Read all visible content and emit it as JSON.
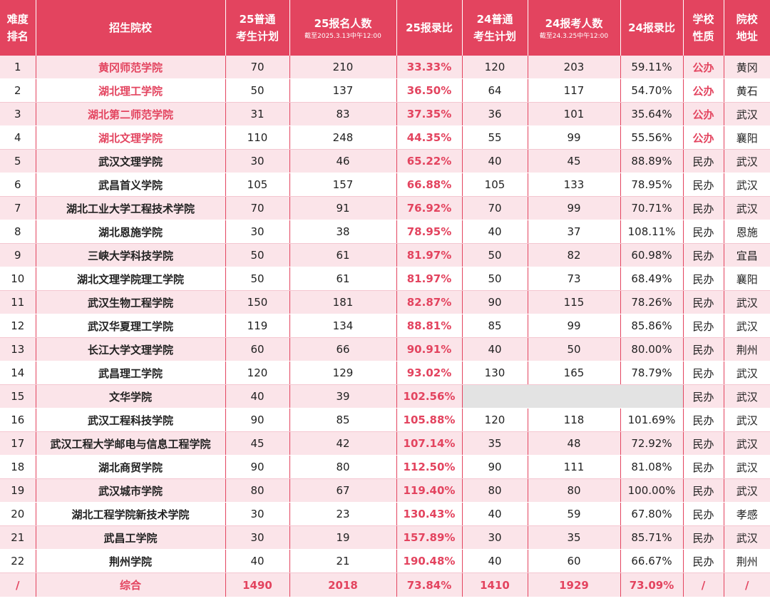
{
  "headers": {
    "rank": [
      "难度",
      "排名"
    ],
    "school": "招生院校",
    "plan25": [
      "25普通",
      "考生计划"
    ],
    "apply25": "25报名人数",
    "apply25_note": "截至2025.3.13中午12:00",
    "ratio25": "25报录比",
    "plan24": [
      "24普通",
      "考生计划"
    ],
    "apply24": "24报考人数",
    "apply24_note": "截至24.3.25中午12:00",
    "ratio24": "24报录比",
    "nature": [
      "学校",
      "性质"
    ],
    "location": [
      "院校",
      "地址"
    ]
  },
  "rows": [
    {
      "rank": "1",
      "school": "黄冈师范学院",
      "plan25": "70",
      "apply25": "210",
      "ratio25": "33.33%",
      "plan24": "120",
      "apply24": "203",
      "ratio24": "59.11%",
      "nature": "公办",
      "location": "黄冈",
      "public": true
    },
    {
      "rank": "2",
      "school": "湖北理工学院",
      "plan25": "50",
      "apply25": "137",
      "ratio25": "36.50%",
      "plan24": "64",
      "apply24": "117",
      "ratio24": "54.70%",
      "nature": "公办",
      "location": "黄石",
      "public": true
    },
    {
      "rank": "3",
      "school": "湖北第二师范学院",
      "plan25": "31",
      "apply25": "83",
      "ratio25": "37.35%",
      "plan24": "36",
      "apply24": "101",
      "ratio24": "35.64%",
      "nature": "公办",
      "location": "武汉",
      "public": true
    },
    {
      "rank": "4",
      "school": "湖北文理学院",
      "plan25": "110",
      "apply25": "248",
      "ratio25": "44.35%",
      "plan24": "55",
      "apply24": "99",
      "ratio24": "55.56%",
      "nature": "公办",
      "location": "襄阳",
      "public": true
    },
    {
      "rank": "5",
      "school": "武汉文理学院",
      "plan25": "30",
      "apply25": "46",
      "ratio25": "65.22%",
      "plan24": "40",
      "apply24": "45",
      "ratio24": "88.89%",
      "nature": "民办",
      "location": "武汉",
      "public": false
    },
    {
      "rank": "6",
      "school": "武昌首义学院",
      "plan25": "105",
      "apply25": "157",
      "ratio25": "66.88%",
      "plan24": "105",
      "apply24": "133",
      "ratio24": "78.95%",
      "nature": "民办",
      "location": "武汉",
      "public": false
    },
    {
      "rank": "7",
      "school": "湖北工业大学工程技术学院",
      "plan25": "70",
      "apply25": "91",
      "ratio25": "76.92%",
      "plan24": "70",
      "apply24": "99",
      "ratio24": "70.71%",
      "nature": "民办",
      "location": "武汉",
      "public": false
    },
    {
      "rank": "8",
      "school": "湖北恩施学院",
      "plan25": "30",
      "apply25": "38",
      "ratio25": "78.95%",
      "plan24": "40",
      "apply24": "37",
      "ratio24": "108.11%",
      "nature": "民办",
      "location": "恩施",
      "public": false
    },
    {
      "rank": "9",
      "school": "三峡大学科技学院",
      "plan25": "50",
      "apply25": "61",
      "ratio25": "81.97%",
      "plan24": "50",
      "apply24": "82",
      "ratio24": "60.98%",
      "nature": "民办",
      "location": "宜昌",
      "public": false
    },
    {
      "rank": "10",
      "school": "湖北文理学院理工学院",
      "plan25": "50",
      "apply25": "61",
      "ratio25": "81.97%",
      "plan24": "50",
      "apply24": "73",
      "ratio24": "68.49%",
      "nature": "民办",
      "location": "襄阳",
      "public": false
    },
    {
      "rank": "11",
      "school": "武汉生物工程学院",
      "plan25": "150",
      "apply25": "181",
      "ratio25": "82.87%",
      "plan24": "90",
      "apply24": "115",
      "ratio24": "78.26%",
      "nature": "民办",
      "location": "武汉",
      "public": false
    },
    {
      "rank": "12",
      "school": "武汉华夏理工学院",
      "plan25": "119",
      "apply25": "134",
      "ratio25": "88.81%",
      "plan24": "85",
      "apply24": "99",
      "ratio24": "85.86%",
      "nature": "民办",
      "location": "武汉",
      "public": false
    },
    {
      "rank": "13",
      "school": "长江大学文理学院",
      "plan25": "60",
      "apply25": "66",
      "ratio25": "90.91%",
      "plan24": "40",
      "apply24": "50",
      "ratio24": "80.00%",
      "nature": "民办",
      "location": "荆州",
      "public": false
    },
    {
      "rank": "14",
      "school": "武昌理工学院",
      "plan25": "120",
      "apply25": "129",
      "ratio25": "93.02%",
      "plan24": "130",
      "apply24": "165",
      "ratio24": "78.79%",
      "nature": "民办",
      "location": "武汉",
      "public": false
    },
    {
      "rank": "15",
      "school": "文华学院",
      "plan25": "40",
      "apply25": "39",
      "ratio25": "102.56%",
      "plan24": null,
      "apply24": null,
      "ratio24": null,
      "nature": "民办",
      "location": "武汉",
      "public": false
    },
    {
      "rank": "16",
      "school": "武汉工程科技学院",
      "plan25": "90",
      "apply25": "85",
      "ratio25": "105.88%",
      "plan24": "120",
      "apply24": "118",
      "ratio24": "101.69%",
      "nature": "民办",
      "location": "武汉",
      "public": false
    },
    {
      "rank": "17",
      "school": "武汉工程大学邮电与信息工程学院",
      "plan25": "45",
      "apply25": "42",
      "ratio25": "107.14%",
      "plan24": "35",
      "apply24": "48",
      "ratio24": "72.92%",
      "nature": "民办",
      "location": "武汉",
      "public": false
    },
    {
      "rank": "18",
      "school": "湖北商贸学院",
      "plan25": "90",
      "apply25": "80",
      "ratio25": "112.50%",
      "plan24": "90",
      "apply24": "111",
      "ratio24": "81.08%",
      "nature": "民办",
      "location": "武汉",
      "public": false
    },
    {
      "rank": "19",
      "school": "武汉城市学院",
      "plan25": "80",
      "apply25": "67",
      "ratio25": "119.40%",
      "plan24": "80",
      "apply24": "80",
      "ratio24": "100.00%",
      "nature": "民办",
      "location": "武汉",
      "public": false
    },
    {
      "rank": "20",
      "school": "湖北工程学院新技术学院",
      "plan25": "30",
      "apply25": "23",
      "ratio25": "130.43%",
      "plan24": "40",
      "apply24": "59",
      "ratio24": "67.80%",
      "nature": "民办",
      "location": "孝感",
      "public": false
    },
    {
      "rank": "21",
      "school": "武昌工学院",
      "plan25": "30",
      "apply25": "19",
      "ratio25": "157.89%",
      "plan24": "30",
      "apply24": "35",
      "ratio24": "85.71%",
      "nature": "民办",
      "location": "武汉",
      "public": false
    },
    {
      "rank": "22",
      "school": "荆州学院",
      "plan25": "40",
      "apply25": "21",
      "ratio25": "190.48%",
      "plan24": "40",
      "apply24": "60",
      "ratio24": "66.67%",
      "nature": "民办",
      "location": "荆州",
      "public": false
    }
  ],
  "total": {
    "rank": "/",
    "school": "综合",
    "plan25": "1490",
    "apply25": "2018",
    "ratio25": "73.84%",
    "plan24": "1410",
    "apply24": "1929",
    "ratio24": "73.09%",
    "nature": "/",
    "location": "/"
  },
  "colors": {
    "accent": "#e3445f",
    "row_tint": "#fbe4e9",
    "blank_cell": "#e3e3e3"
  }
}
